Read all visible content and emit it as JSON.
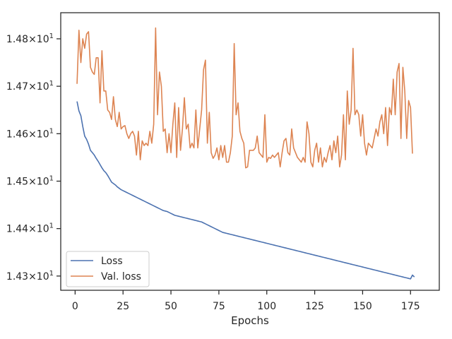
{
  "chart_data": {
    "type": "line",
    "title": "",
    "xlabel": "Epochs",
    "ylabel": "",
    "xlim": [
      -7.5,
      190
    ],
    "ylim": [
      14.27,
      14.855
    ],
    "x_ticks": [
      0,
      25,
      50,
      75,
      100,
      125,
      150,
      175
    ],
    "y_ticks": [
      {
        "value": 14.3,
        "label": "1.43×10¹"
      },
      {
        "value": 14.4,
        "label": "1.44×10¹"
      },
      {
        "value": 14.5,
        "label": "1.45×10¹"
      },
      {
        "value": 14.6,
        "label": "1.46×10¹"
      },
      {
        "value": 14.7,
        "label": "1.47×10¹"
      },
      {
        "value": 14.8,
        "label": "1.48×10¹"
      }
    ],
    "grid": false,
    "legend_position": "lower-left",
    "x_start": 1,
    "series": [
      {
        "name": "Loss",
        "color": "#4c72b0",
        "values": [
          14.668,
          14.648,
          14.638,
          14.615,
          14.595,
          14.588,
          14.578,
          14.565,
          14.56,
          14.555,
          14.548,
          14.542,
          14.535,
          14.528,
          14.522,
          14.518,
          14.512,
          14.505,
          14.498,
          14.495,
          14.492,
          14.488,
          14.485,
          14.482,
          14.48,
          14.478,
          14.476,
          14.474,
          14.472,
          14.47,
          14.468,
          14.466,
          14.464,
          14.462,
          14.46,
          14.458,
          14.456,
          14.454,
          14.452,
          14.45,
          14.448,
          14.446,
          14.444,
          14.442,
          14.44,
          14.438,
          14.437,
          14.436,
          14.434,
          14.432,
          14.43,
          14.428,
          14.427,
          14.426,
          14.425,
          14.424,
          14.423,
          14.422,
          14.421,
          14.42,
          14.419,
          14.418,
          14.417,
          14.416,
          14.415,
          14.414,
          14.412,
          14.41,
          14.408,
          14.406,
          14.404,
          14.402,
          14.4,
          14.398,
          14.396,
          14.394,
          14.392,
          14.391,
          14.39,
          14.389,
          14.388,
          14.387,
          14.386,
          14.385,
          14.384,
          14.383,
          14.382,
          14.381,
          14.38,
          14.379,
          14.378,
          14.377,
          14.376,
          14.375,
          14.374,
          14.373,
          14.372,
          14.371,
          14.37,
          14.369,
          14.368,
          14.367,
          14.366,
          14.365,
          14.364,
          14.363,
          14.362,
          14.361,
          14.36,
          14.359,
          14.358,
          14.357,
          14.356,
          14.355,
          14.354,
          14.353,
          14.352,
          14.351,
          14.35,
          14.349,
          14.348,
          14.347,
          14.346,
          14.345,
          14.344,
          14.343,
          14.342,
          14.341,
          14.34,
          14.339,
          14.338,
          14.337,
          14.336,
          14.335,
          14.334,
          14.333,
          14.332,
          14.331,
          14.33,
          14.329,
          14.328,
          14.327,
          14.326,
          14.325,
          14.324,
          14.323,
          14.322,
          14.321,
          14.32,
          14.319,
          14.318,
          14.317,
          14.316,
          14.315,
          14.314,
          14.313,
          14.312,
          14.311,
          14.31,
          14.309,
          14.308,
          14.307,
          14.306,
          14.305,
          14.304,
          14.303,
          14.302,
          14.301,
          14.3,
          14.299,
          14.298,
          14.297,
          14.296,
          14.295,
          14.294,
          14.302,
          14.298
        ]
      },
      {
        "name": "Val. loss",
        "color": "#dd8452",
        "values": [
          14.705,
          14.818,
          14.75,
          14.8,
          14.78,
          14.81,
          14.815,
          14.74,
          14.73,
          14.725,
          14.76,
          14.76,
          14.665,
          14.775,
          14.69,
          14.69,
          14.65,
          14.645,
          14.63,
          14.678,
          14.63,
          14.615,
          14.645,
          14.61,
          14.615,
          14.617,
          14.6,
          14.59,
          14.6,
          14.605,
          14.595,
          14.555,
          14.605,
          14.545,
          14.585,
          14.575,
          14.58,
          14.575,
          14.605,
          14.58,
          14.62,
          14.823,
          14.64,
          14.73,
          14.7,
          14.605,
          14.61,
          14.56,
          14.6,
          14.56,
          14.62,
          14.665,
          14.55,
          14.655,
          14.565,
          14.61,
          14.676,
          14.61,
          14.62,
          14.57,
          14.58,
          14.57,
          14.65,
          14.57,
          14.61,
          14.65,
          14.735,
          14.755,
          14.58,
          14.645,
          14.56,
          14.548,
          14.555,
          14.57,
          14.545,
          14.575,
          14.55,
          14.575,
          14.54,
          14.54,
          14.56,
          14.595,
          14.79,
          14.64,
          14.665,
          14.605,
          14.59,
          14.58,
          14.528,
          14.53,
          14.565,
          14.565,
          14.565,
          14.57,
          14.595,
          14.56,
          14.555,
          14.55,
          14.64,
          14.54,
          14.55,
          14.548,
          14.555,
          14.55,
          14.555,
          14.56,
          14.53,
          14.56,
          14.585,
          14.59,
          14.56,
          14.555,
          14.61,
          14.57,
          14.56,
          14.55,
          14.545,
          14.54,
          14.55,
          14.54,
          14.625,
          14.6,
          14.54,
          14.53,
          14.565,
          14.58,
          14.54,
          14.57,
          14.53,
          14.55,
          14.54,
          14.56,
          14.575,
          14.545,
          14.585,
          14.56,
          14.595,
          14.53,
          14.555,
          14.64,
          14.545,
          14.69,
          14.62,
          14.65,
          14.78,
          14.64,
          14.65,
          14.64,
          14.595,
          14.64,
          14.58,
          14.555,
          14.58,
          14.575,
          14.57,
          14.59,
          14.61,
          14.595,
          14.625,
          14.64,
          14.6,
          14.655,
          14.575,
          14.655,
          14.64,
          14.715,
          14.64,
          14.73,
          14.748,
          14.59,
          14.74,
          14.69,
          14.59,
          14.67,
          14.655,
          14.558
        ]
      }
    ]
  }
}
